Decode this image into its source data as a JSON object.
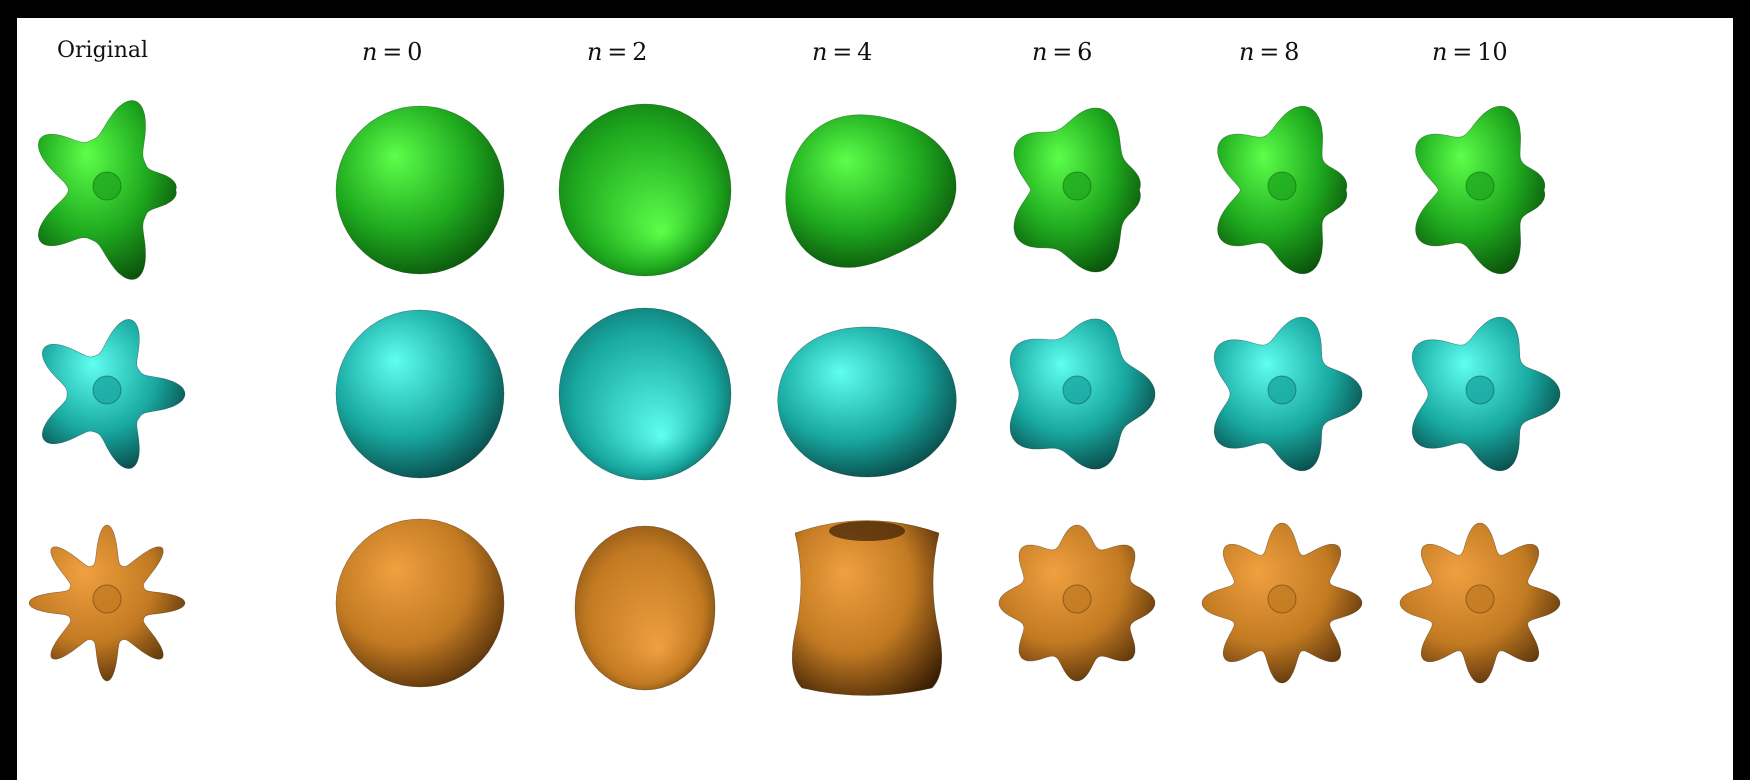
{
  "headers": {
    "original": "Original",
    "n0": "n = 0",
    "n2": "n = 2",
    "n4": "n = 4",
    "n6": "n = 6",
    "n8": "n = 8",
    "n10": "n = 10"
  },
  "rows": [
    {
      "name": "green-twisted-shape",
      "colors": {
        "light": "#5cff4a",
        "mid": "#1ea81e",
        "dark": "#063d06"
      }
    },
    {
      "name": "cyan-star-shape",
      "colors": {
        "light": "#5ffff0",
        "mid": "#18a8a0",
        "dark": "#052e2e"
      }
    },
    {
      "name": "orange-flower-shape",
      "colors": {
        "light": "#f0a040",
        "mid": "#c27a22",
        "dark": "#3a1e04"
      }
    }
  ]
}
